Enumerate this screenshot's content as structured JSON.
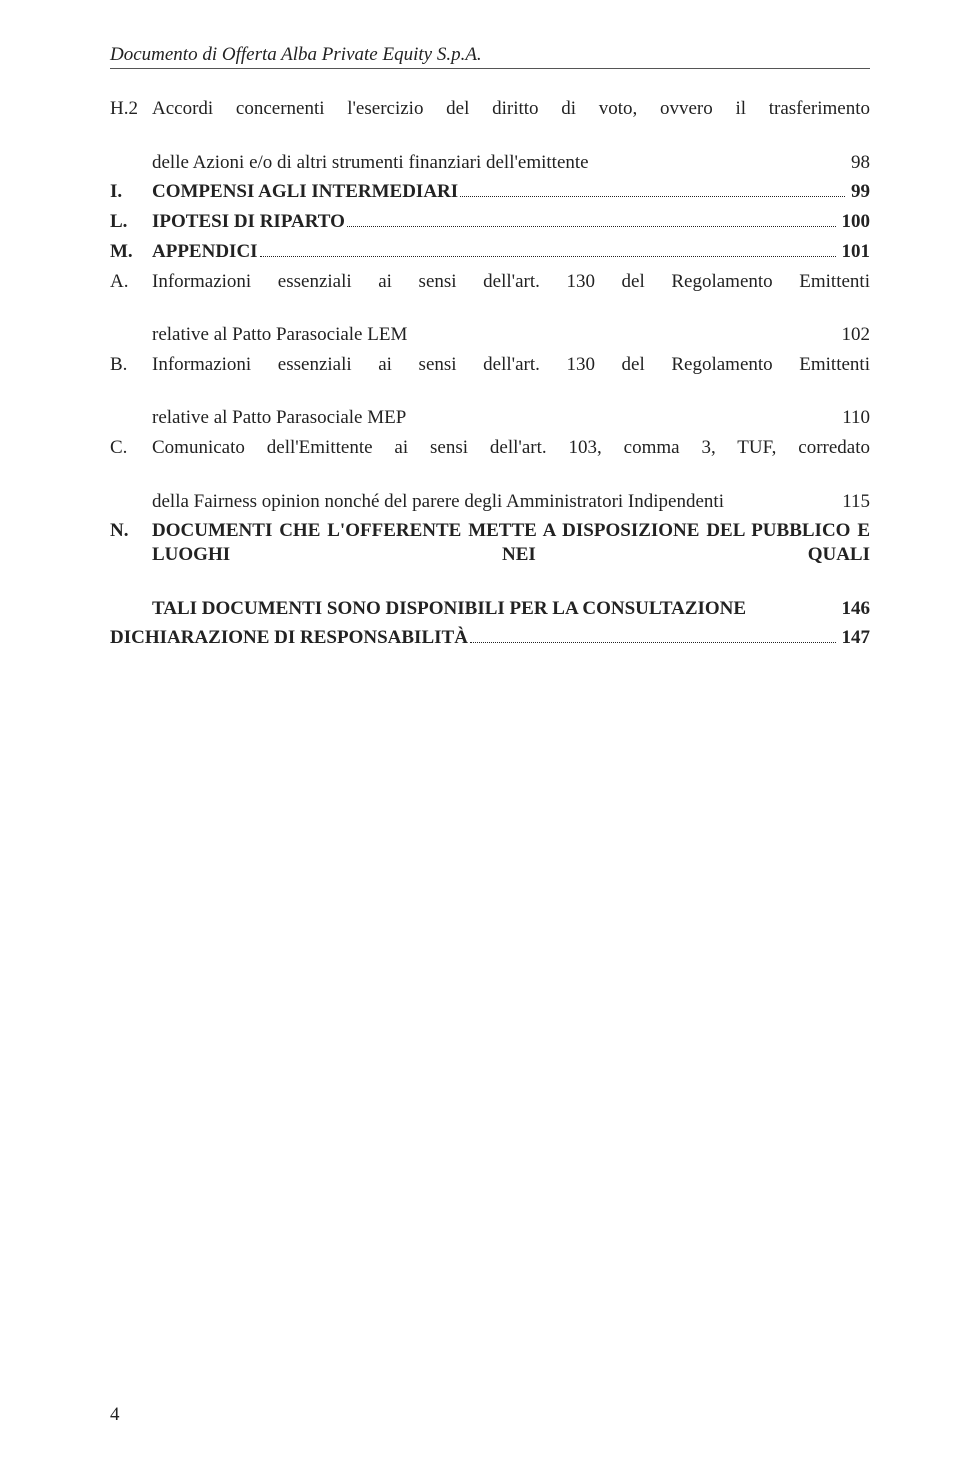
{
  "header": {
    "running_title": "Documento di Offerta Alba Private Equity S.p.A."
  },
  "toc": {
    "entries": [
      {
        "label": "H.2",
        "text": "Accordi concernenti l'esercizio del diritto di voto, ovvero il trasferimento delle Azioni e/o di altri strumenti finanziari dell'emittente",
        "page": "98",
        "bold": false,
        "hang": true
      },
      {
        "label": "I.",
        "text": "COMPENSI AGLI INTERMEDIARI",
        "page": "99",
        "bold": true,
        "hang": false
      },
      {
        "label": "L.",
        "text": "IPOTESI DI RIPARTO",
        "page": "100",
        "bold": true,
        "hang": false
      },
      {
        "label": "M.",
        "text": "APPENDICI",
        "page": "101",
        "bold": true,
        "hang": false
      },
      {
        "label": "A.",
        "text": "Informazioni essenziali ai sensi dell'art. 130 del Regolamento Emittenti relative al Patto Parasociale LEM",
        "page": "102",
        "bold": false,
        "hang": true
      },
      {
        "label": "B.",
        "text": "Informazioni essenziali ai sensi dell'art. 130 del Regolamento Emittenti relative al Patto Parasociale MEP",
        "page": "110",
        "bold": false,
        "hang": true
      },
      {
        "label": "C.",
        "text": "Comunicato dell'Emittente ai sensi dell'art. 103, comma 3, TUF, corredato della Fairness opinion nonché del parere degli Amministratori Indipendenti",
        "page": "115",
        "bold": false,
        "hang": true
      },
      {
        "label": "N.",
        "text": "DOCUMENTI CHE L'OFFERENTE METTE A DISPOSIZIONE DEL PUBBLICO E LUOGHI NEI QUALI TALI DOCUMENTI SONO DISPONIBILI PER LA CONSULTAZIONE",
        "page": "146",
        "bold": true,
        "hang": true
      },
      {
        "label": "",
        "text": "DICHIARAZIONE DI RESPONSABILITÀ",
        "page": "147",
        "bold": true,
        "hang": false,
        "noindent": true
      }
    ]
  },
  "footer": {
    "page_number": "4"
  }
}
